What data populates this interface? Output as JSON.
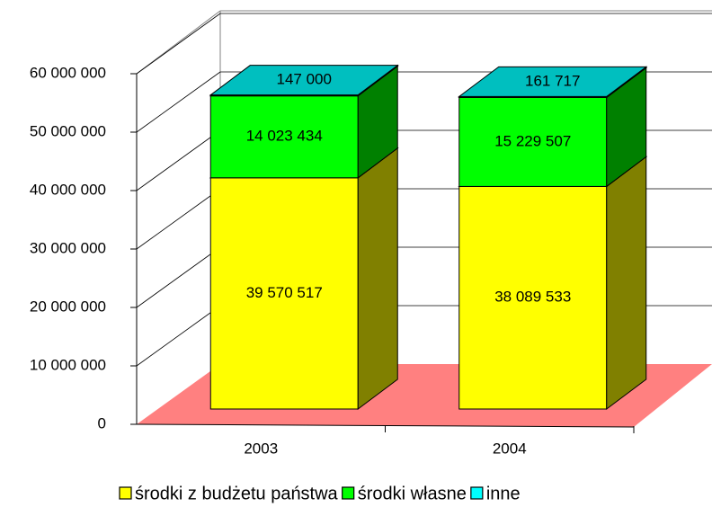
{
  "chart_data": {
    "type": "bar3d_stacked",
    "categories": [
      "2003",
      "2004"
    ],
    "series": [
      {
        "name": "środki z budżetu państwa",
        "color": "#ffff00",
        "values": [
          39570517,
          38089533
        ],
        "value_labels": [
          "39 570 517",
          "38 089 533"
        ]
      },
      {
        "name": "środki własne",
        "color": "#00ff00",
        "values": [
          14023434,
          15229507
        ],
        "value_labels": [
          "14 023 434",
          "15 229 507"
        ]
      },
      {
        "name": "inne",
        "color": "#00ffff",
        "values": [
          147000,
          161717
        ],
        "value_labels": [
          "147 000",
          "161 717"
        ]
      }
    ],
    "ylim": [
      0,
      60000000
    ],
    "yticks": [
      {
        "value": 0,
        "label": "0"
      },
      {
        "value": 10000000,
        "label": "10 000 000"
      },
      {
        "value": 20000000,
        "label": "20 000 000"
      },
      {
        "value": 30000000,
        "label": "30 000 000"
      },
      {
        "value": 40000000,
        "label": "40 000 000"
      },
      {
        "value": 50000000,
        "label": "50 000 000"
      },
      {
        "value": 60000000,
        "label": "60 000 000"
      }
    ],
    "grid": true,
    "legend": "bottom"
  }
}
